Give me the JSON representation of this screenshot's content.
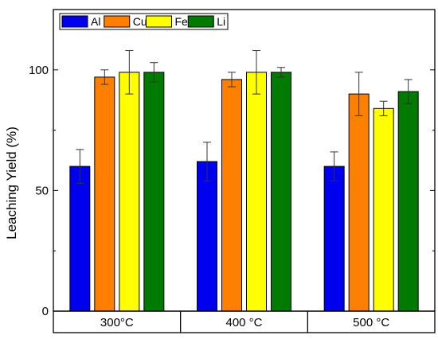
{
  "chart_data": {
    "type": "bar",
    "title": "",
    "xlabel": "",
    "ylabel": "Leaching Yield (%)",
    "ylim": [
      0,
      125
    ],
    "yticks": [
      0,
      50,
      100
    ],
    "grid": false,
    "legend_position": "top-left",
    "categories": [
      "300°C",
      "400 °C",
      "500 °C"
    ],
    "series": [
      {
        "name": "Al",
        "color": "#0000ee",
        "values": [
          60,
          62,
          60
        ],
        "errors": [
          7,
          8,
          6
        ]
      },
      {
        "name": "Cu",
        "color": "#ff8000",
        "values": [
          97,
          96,
          90
        ],
        "errors": [
          3,
          3,
          9
        ]
      },
      {
        "name": "Fe",
        "color": "#ffff00",
        "values": [
          99,
          99,
          84
        ],
        "errors": [
          9,
          9,
          3
        ]
      },
      {
        "name": "Li",
        "color": "#007a00",
        "values": [
          99,
          99,
          91
        ],
        "errors": [
          4,
          2,
          5
        ]
      }
    ]
  }
}
